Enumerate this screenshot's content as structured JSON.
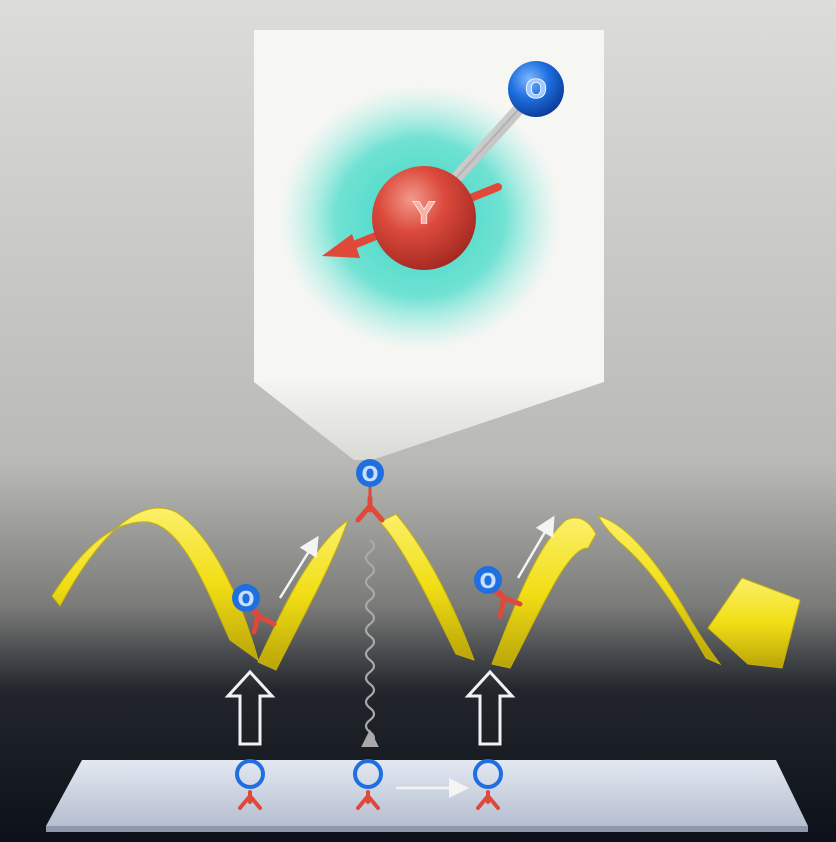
{
  "labels": {
    "inset_y": "Y",
    "inset_o": "O",
    "top_y": "Y",
    "top_o": "O",
    "left_y": "Y",
    "left_o": "O",
    "right_y": "Y",
    "right_o": "O",
    "base1_y": "Y",
    "base1_o": "O",
    "base2_y": "Y",
    "base2_o": "O",
    "base3_y": "Y",
    "base3_o": "O"
  },
  "colors": {
    "yttrium": "#e0493a",
    "oxygen": "#1f6fe0",
    "ribbon": "#f3e41c",
    "cloud": "#3fd8c4",
    "plate": "#c9d2e2",
    "arrow_outline": "#f2f2f2"
  }
}
